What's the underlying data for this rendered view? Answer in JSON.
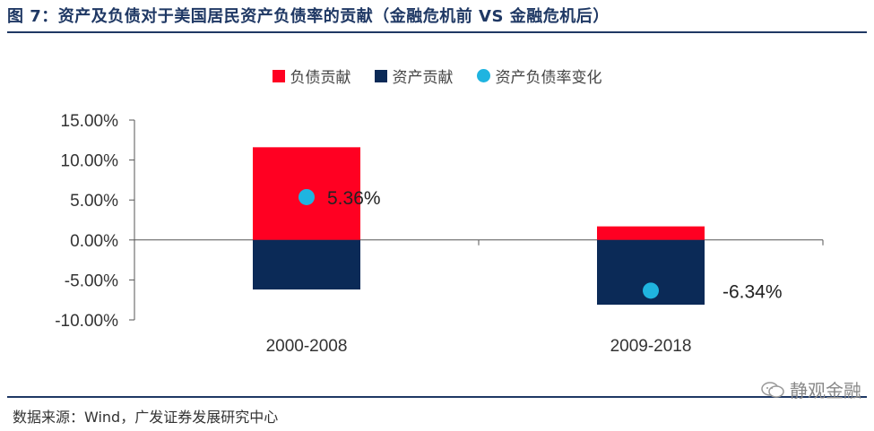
{
  "title": "图 7：资产及负债对于美国居民资产负债率的贡献（金融危机前 VS 金融危机后）",
  "source": "数据来源：Wind，广发证券发展研究中心",
  "watermark": "静观金融",
  "colors": {
    "debt": "#ff0022",
    "asset": "#0b2a57",
    "ratio": "#1fb4e0",
    "title": "#1f3864"
  },
  "chart_data": {
    "type": "bar",
    "stacked": true,
    "categories": [
      "2000-2008",
      "2009-2018"
    ],
    "series": [
      {
        "name": "负债贡献",
        "values": [
          11.6,
          1.7
        ]
      },
      {
        "name": "资产贡献",
        "values": [
          -6.2,
          -8.1
        ]
      }
    ],
    "markers": {
      "name": "资产负债率变化",
      "values": [
        5.36,
        -6.34
      ],
      "labels": [
        "5.36%",
        "-6.34%"
      ]
    },
    "yticks": [
      "15.00%",
      "10.00%",
      "5.00%",
      "0.00%",
      "-5.00%",
      "-10.00%"
    ],
    "ylim": [
      -10,
      15
    ],
    "grid": false,
    "legend_position": "top"
  }
}
